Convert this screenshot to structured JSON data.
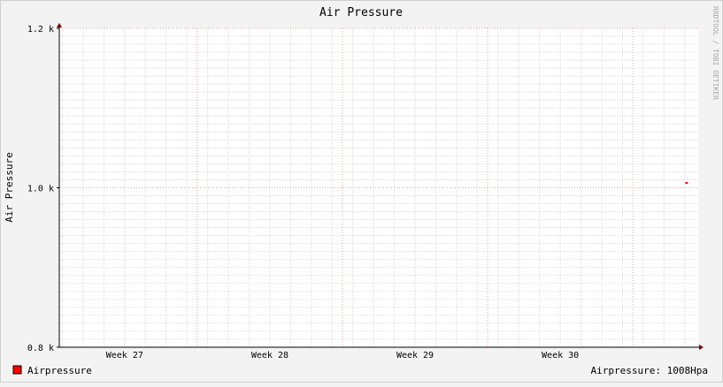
{
  "chart_data": {
    "type": "line",
    "title": "Air Pressure",
    "ylabel": "Air Pressure",
    "xlabel": "",
    "ylim": [
      800,
      1200
    ],
    "y_ticks": [
      {
        "value": 800,
        "label": "0.8 k"
      },
      {
        "value": 1000,
        "label": "1.0 k"
      },
      {
        "value": 1200,
        "label": "1.2 k"
      }
    ],
    "x_range_weeks": [
      26.55,
      30.95
    ],
    "x_ticks": [
      {
        "week": 27,
        "label": "Week 27"
      },
      {
        "week": 28,
        "label": "Week 28"
      },
      {
        "week": 29,
        "label": "Week 29"
      },
      {
        "week": 30,
        "label": "Week 30"
      }
    ],
    "week_boundaries": [
      27.5,
      28.5,
      29.5,
      30.5
    ],
    "grid": true,
    "series": [
      {
        "name": "Airpressure",
        "color": "#ff0000",
        "points": [
          {
            "week": 30.87,
            "value": 1006
          }
        ]
      }
    ],
    "legend": {
      "placement": "bottom-left",
      "swatch_color": "#ff0000",
      "label": "Airpressure"
    },
    "current_value_text": "Airpressure: 1008Hpa",
    "watermark": "RRDTOOL / TOBI OETIKER"
  }
}
